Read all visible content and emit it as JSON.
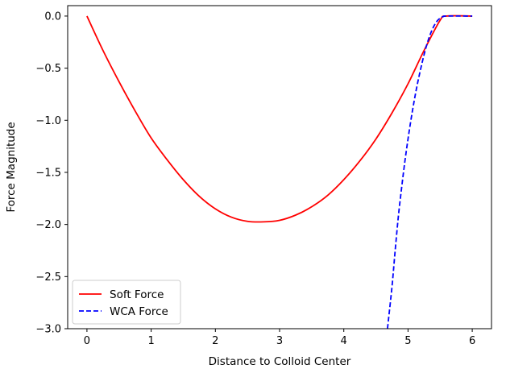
{
  "chart_data": {
    "type": "line",
    "title": "",
    "xlabel": "Distance to Colloid Center",
    "ylabel": "Force Magnitude",
    "xlim": [
      -0.3,
      6.3
    ],
    "ylim": [
      -3.0,
      0.1
    ],
    "xticks": [
      0,
      1,
      2,
      3,
      4,
      5,
      6
    ],
    "yticks": [
      0.0,
      -0.5,
      -1.0,
      -1.5,
      -2.0,
      -2.5,
      -3.0
    ],
    "xtick_labels": [
      "0",
      "1",
      "2",
      "3",
      "4",
      "5",
      "6"
    ],
    "ytick_labels": [
      "0.0",
      "−0.5",
      "−1.0",
      "−1.5",
      "−2.0",
      "−2.5",
      "−3.0"
    ],
    "grid": false,
    "legend_position": "lower-left",
    "series": [
      {
        "name": "Soft Force",
        "color": "#ff0000",
        "style": "solid",
        "x": [
          0.0,
          0.25,
          0.5,
          0.75,
          1.0,
          1.25,
          1.5,
          1.75,
          2.0,
          2.25,
          2.5,
          2.75,
          3.0,
          3.25,
          3.5,
          3.75,
          4.0,
          4.25,
          4.5,
          4.75,
          5.0,
          5.25,
          5.5,
          5.6,
          6.0
        ],
        "y": [
          0.0,
          -0.33,
          -0.63,
          -0.91,
          -1.17,
          -1.38,
          -1.57,
          -1.73,
          -1.85,
          -1.93,
          -1.97,
          -1.975,
          -1.96,
          -1.91,
          -1.83,
          -1.72,
          -1.57,
          -1.39,
          -1.18,
          -0.93,
          -0.65,
          -0.33,
          -0.04,
          0.0,
          0.0
        ]
      },
      {
        "name": "WCA Force",
        "color": "#0000ff",
        "style": "dashed",
        "x": [
          4.68,
          4.75,
          4.8,
          4.85,
          4.9,
          4.95,
          5.0,
          5.05,
          5.1,
          5.15,
          5.2,
          5.25,
          5.3,
          5.35,
          5.4,
          5.45,
          5.5,
          5.55,
          5.6,
          6.0
        ],
        "y": [
          -3.0,
          -2.6,
          -2.25,
          -1.92,
          -1.65,
          -1.4,
          -1.18,
          -0.98,
          -0.8,
          -0.64,
          -0.5,
          -0.37,
          -0.26,
          -0.17,
          -0.1,
          -0.05,
          -0.02,
          -0.005,
          0.0,
          0.0
        ]
      }
    ]
  }
}
